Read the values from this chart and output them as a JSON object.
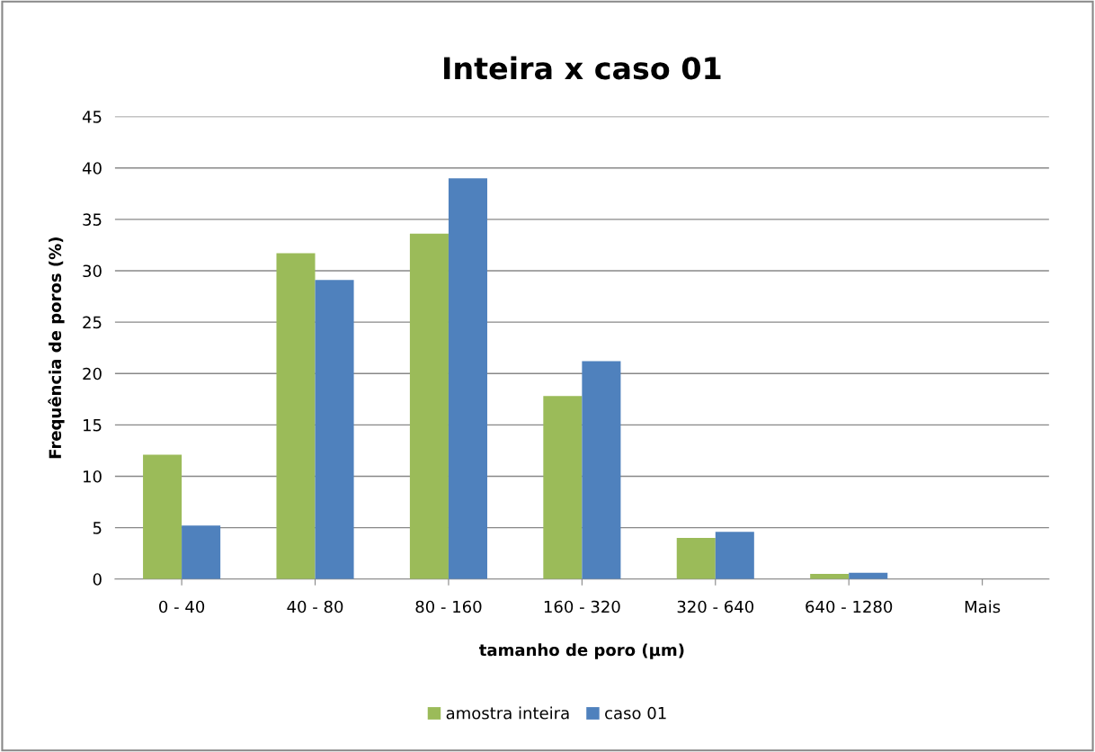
{
  "chart_data": {
    "type": "bar",
    "title": "Inteira x caso 01",
    "xlabel": "tamanho de poro (µm)",
    "ylabel": "Frequência de poros (%)",
    "categories": [
      "0 - 40",
      "40 - 80",
      "80 - 160",
      "160 - 320",
      "320 - 640",
      "640 - 1280",
      "Mais"
    ],
    "series": [
      {
        "name": "amostra inteira",
        "color": "#9bbb59",
        "values": [
          12.1,
          31.7,
          33.6,
          17.8,
          4.0,
          0.5,
          0
        ]
      },
      {
        "name": "caso 01",
        "color": "#4f81bd",
        "values": [
          5.2,
          29.1,
          39.0,
          21.2,
          4.6,
          0.6,
          0
        ]
      }
    ],
    "ylim": [
      0,
      45
    ],
    "yticks": [
      0,
      5,
      10,
      15,
      20,
      25,
      30,
      35,
      40,
      45
    ],
    "grid": "y",
    "legend": "bottom"
  }
}
